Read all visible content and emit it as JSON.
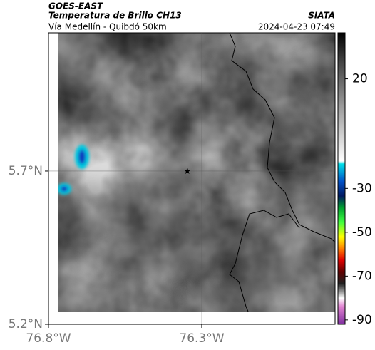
{
  "header": {
    "source": "GOES-EAST",
    "title": "Temperatura de Brillo CH13",
    "subtitle": "Vía Medellín - Quibdó 50km",
    "brand": "SIATA",
    "timestamp": "2024-04-23 07:49"
  },
  "map": {
    "lonlim": [
      -76.8,
      -75.865
    ],
    "latlim": [
      5.2,
      6.151
    ],
    "lonticks": [
      {
        "value": -76.8,
        "label": "76.8°W"
      },
      {
        "value": -76.3,
        "label": "76.3°W"
      }
    ],
    "latticks": [
      {
        "value": 5.7,
        "label": "5.7°N"
      },
      {
        "value": 5.2,
        "label": "5.2°N"
      }
    ],
    "gridlines": {
      "lon": -76.3,
      "lat": 5.7
    },
    "marker": {
      "lon": -76.347,
      "lat": 5.7
    }
  },
  "colorbar": {
    "lim": [
      -92,
      41
    ],
    "ticks": [
      20,
      -30,
      -50,
      -70,
      -90
    ]
  }
}
